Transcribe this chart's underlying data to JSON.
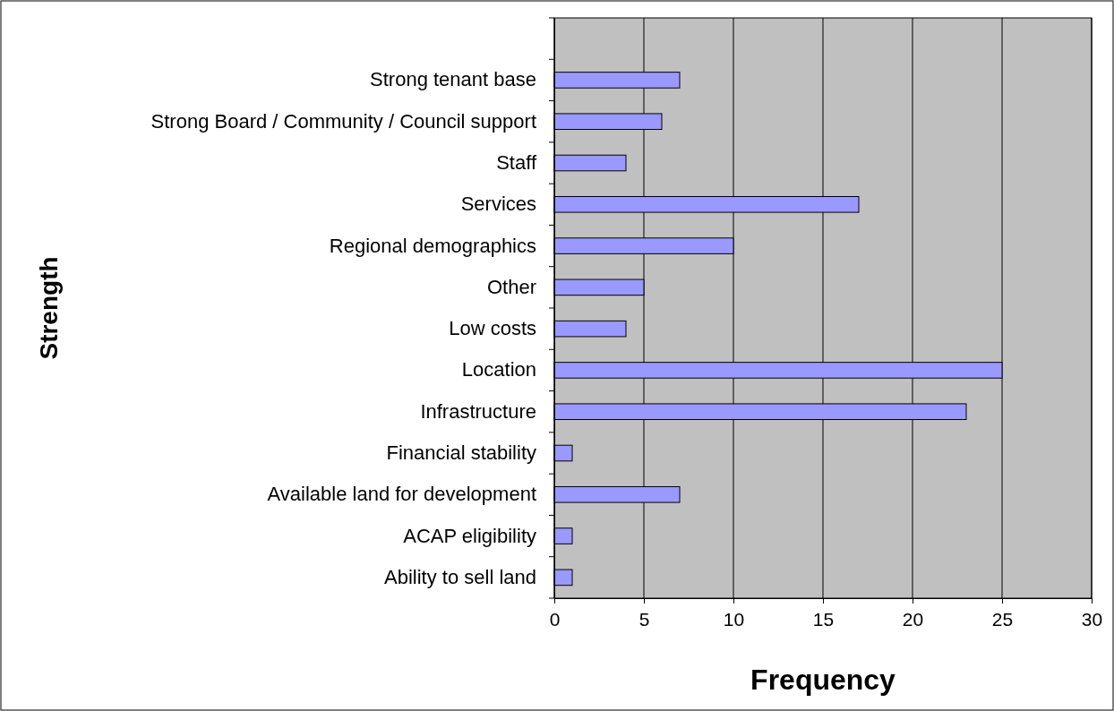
{
  "chart_data": {
    "type": "bar",
    "orientation": "horizontal",
    "xlabel": "Frequency",
    "ylabel": "Strength",
    "categories": [
      null,
      "Strong tenant base",
      "Strong Board / Community / Council support",
      "Staff",
      "Services",
      "Regional demographics",
      "Other",
      "Low costs",
      "Location",
      "Infrastructure",
      "Financial stability",
      "Available land for development",
      "ACAP eligibility",
      "Ability to sell land"
    ],
    "values": [
      null,
      7,
      6,
      4,
      17,
      10,
      5,
      4,
      25,
      23,
      1,
      7,
      1,
      1
    ],
    "color": "#9999ff",
    "xlim": [
      0,
      30
    ],
    "xticks": [
      0,
      5,
      10,
      15,
      20,
      25,
      30
    ],
    "grid": "x"
  }
}
